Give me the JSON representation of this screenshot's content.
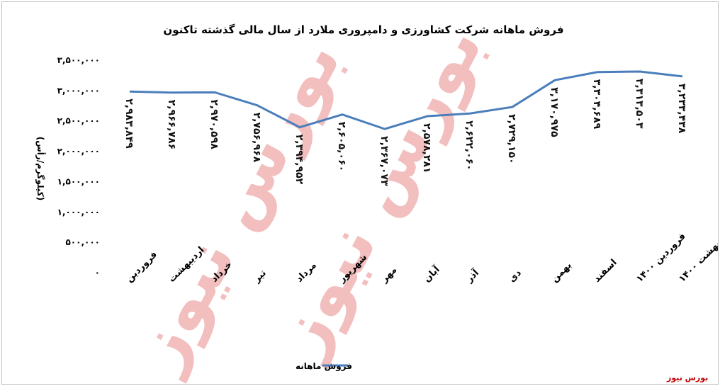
{
  "source_label": "بورس نیوز",
  "watermark": "بورس نیوز",
  "chart_data": {
    "type": "line",
    "title": "فروش ماهانه شرکت کشاورزی و دامپروری ملارد از سال مالی گذشته تاکنون",
    "ylabel": "(کیلوگرم/رأس)",
    "xlabel": "",
    "ylim": [
      0,
      3500000
    ],
    "yticks": [
      0,
      500000,
      1000000,
      1500000,
      2000000,
      2500000,
      3000000,
      3500000
    ],
    "ytick_labels": [
      "۰",
      "۵۰۰,۰۰۰",
      "۱,۰۰۰,۰۰۰",
      "۱,۵۰۰,۰۰۰",
      "۲,۰۰۰,۰۰۰",
      "۲,۵۰۰,۰۰۰",
      "۳,۰۰۰,۰۰۰",
      "۳,۵۰۰,۰۰۰"
    ],
    "categories": [
      "فروردین",
      "اردیبهشت",
      "خرداد",
      "تیر",
      "مرداد",
      "شهریور",
      "مهر",
      "آبان",
      "آذر",
      "دی",
      "بهمن",
      "اسفند",
      "فروردین ۱۴۰۰",
      "اردیبهشت ۱۴۰۰"
    ],
    "series": [
      {
        "name": "فروش ماهانه",
        "color": "#4a7ebb",
        "values": [
          2983849,
          2966786,
          2970598,
          2756968,
          2394952,
          2605060,
          2367073,
          2578281,
          2622060,
          2729150,
          3170975,
          3304689,
          3313503,
          3233438
        ],
        "labels": [
          "۲,۹۸۳,۸۴۹",
          "۲,۹۶۶,۷۸۶",
          "۲,۹۷۰,۵۹۸",
          "۲,۷۵۶,۹۶۸",
          "۲,۳۹۴,۹۵۲",
          "۲,۶۰۵,۰۶۰",
          "۲,۳۶۷,۰۷۳",
          "۲,۵۷۸,۲۸۱",
          "۲,۶۲۲,۰۶۰",
          "۲,۷۲۹,۱۵۰",
          "۳,۱۷۰,۹۷۵",
          "۳,۳۰۴,۶۸۹",
          "۳,۳۱۳,۵۰۳",
          "۳,۲۳۳,۴۳۸"
        ]
      }
    ],
    "grid": false,
    "legend": "bottom"
  }
}
